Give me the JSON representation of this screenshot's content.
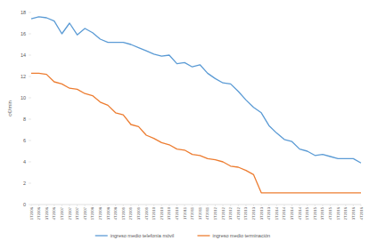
{
  "chart_data": {
    "type": "line",
    "y_label": "c€/min",
    "categories": [
      "1T2006",
      "2T2006",
      "3T2006",
      "4T2006",
      "1T2007",
      "2T2007",
      "3T2007",
      "4T2007",
      "1T2008",
      "2T2008",
      "3T2008",
      "4T2008",
      "1T2009",
      "2T2009",
      "3T2009",
      "4T2009",
      "1T2010",
      "2T2010",
      "3T2010",
      "4T2010",
      "1T2011",
      "2T2011",
      "3T2011",
      "4T2011",
      "1T2012",
      "2T2012",
      "3T2012",
      "4T2012",
      "1T2013",
      "2T2013",
      "3T2013",
      "4T2013",
      "1T2014",
      "2T2014",
      "3T2014",
      "4T2014",
      "1T2015",
      "2T2015",
      "3T2015",
      "4T2015",
      "1T2016",
      "2T2016",
      "3T2016",
      "4T2016"
    ],
    "series": [
      {
        "name": "ingreso medio telefonía móvil",
        "color": "#5b9bd5",
        "values": [
          17.4,
          17.6,
          17.5,
          17.2,
          16.0,
          17.0,
          15.9,
          16.5,
          16.1,
          15.5,
          15.2,
          15.2,
          15.2,
          15.0,
          14.7,
          14.4,
          14.1,
          13.9,
          14.0,
          13.2,
          13.3,
          12.9,
          13.1,
          12.3,
          11.8,
          11.4,
          11.3,
          10.6,
          9.8,
          9.1,
          8.6,
          7.4,
          6.7,
          6.1,
          5.9,
          5.2,
          5.0,
          4.6,
          4.7,
          4.5,
          4.3,
          4.3,
          4.3,
          3.9
        ]
      },
      {
        "name": "ingreso medio terminación",
        "color": "#ed7d31",
        "values": [
          12.3,
          12.3,
          12.2,
          11.5,
          11.3,
          10.9,
          10.8,
          10.4,
          10.2,
          9.6,
          9.3,
          8.6,
          8.4,
          7.5,
          7.3,
          6.5,
          6.2,
          5.8,
          5.6,
          5.2,
          5.1,
          4.7,
          4.6,
          4.3,
          4.2,
          4.0,
          3.6,
          3.5,
          3.2,
          2.8,
          1.1,
          1.1,
          1.1,
          1.1,
          1.1,
          1.1,
          1.1,
          1.1,
          1.1,
          1.1,
          1.1,
          1.1,
          1.1,
          1.1
        ]
      }
    ],
    "ylim": [
      0,
      18
    ],
    "yticks": [
      0,
      2,
      4,
      6,
      8,
      10,
      12,
      14,
      16,
      18
    ],
    "grid": false,
    "legend": "bottom"
  }
}
